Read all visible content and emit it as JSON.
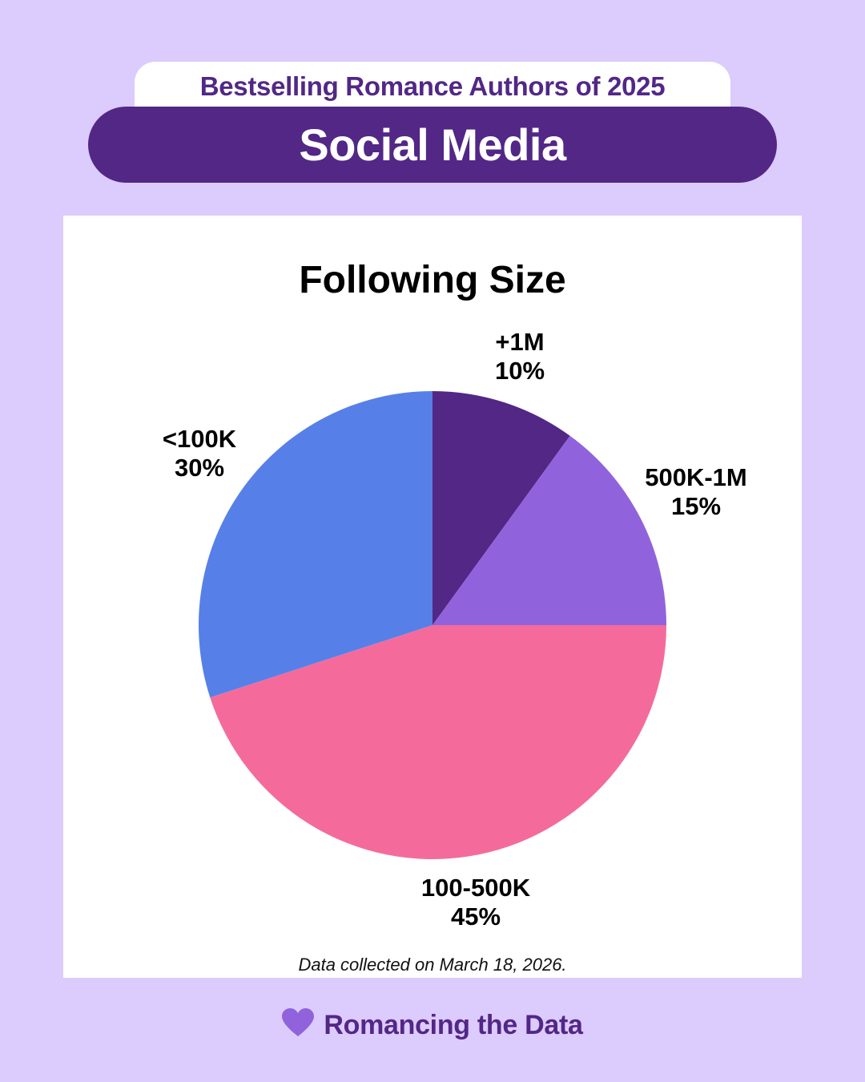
{
  "header": {
    "subtitle": "Bestselling Romance Authors of 2025",
    "title": "Social Media"
  },
  "chart_data": {
    "type": "pie",
    "title": "Following Size",
    "slices": [
      {
        "label": "+1M",
        "value": 10,
        "value_label": "10%",
        "color": "#522786"
      },
      {
        "label": "500K-1M",
        "value": 15,
        "value_label": "15%",
        "color": "#9063dc"
      },
      {
        "label": "100-500K",
        "value": 45,
        "value_label": "45%",
        "color": "#f46b9b"
      },
      {
        "label": "<100K",
        "value": 30,
        "value_label": "30%",
        "color": "#5680e8"
      }
    ]
  },
  "note": "Data collected on March 18, 2026.",
  "footer": {
    "icon": "heart-icon",
    "icon_color": "#9063dc",
    "brand": "Romancing the Data"
  },
  "colors": {
    "background": "#dccbfd",
    "accent": "#522786"
  }
}
